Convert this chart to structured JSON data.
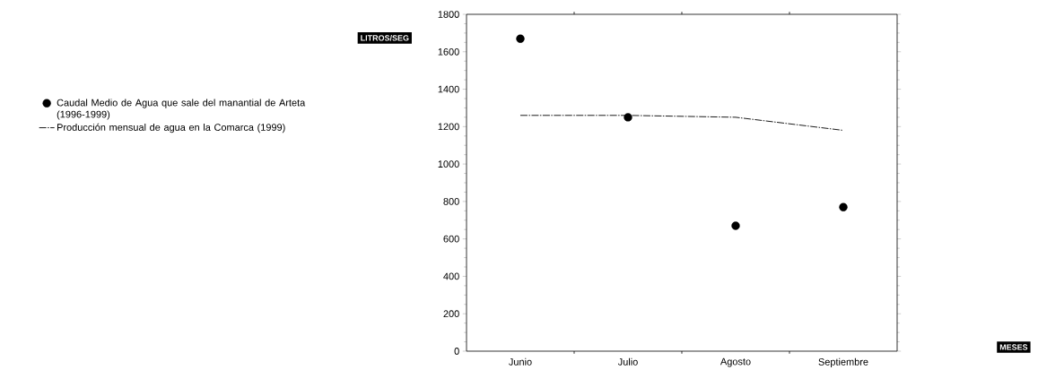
{
  "chart_data": {
    "type": "scatter",
    "ylabel": "LITROS/SEG",
    "annotations": [
      "MESES"
    ],
    "categories": [
      "Junio",
      "Julio",
      "Agosto",
      "Septiembre"
    ],
    "series": [
      {
        "name": "Caudal Medio de Agua que sale del manantial de Arteta (1996-1999)",
        "marker": "circle",
        "color": "#000000",
        "values": [
          1670,
          1250,
          670,
          770
        ]
      },
      {
        "name": "Producción mensual de agua en la Comarca (1999)",
        "type": "line",
        "marker": "none",
        "line_style": "dashed",
        "color": "#000000",
        "values": [
          1260,
          1260,
          1250,
          1180
        ]
      }
    ],
    "ylim": [
      0,
      1800
    ],
    "yticks": [
      0,
      200,
      400,
      600,
      800,
      1000,
      1200,
      1400,
      1600,
      1800
    ],
    "grid": false,
    "legend": "left"
  }
}
